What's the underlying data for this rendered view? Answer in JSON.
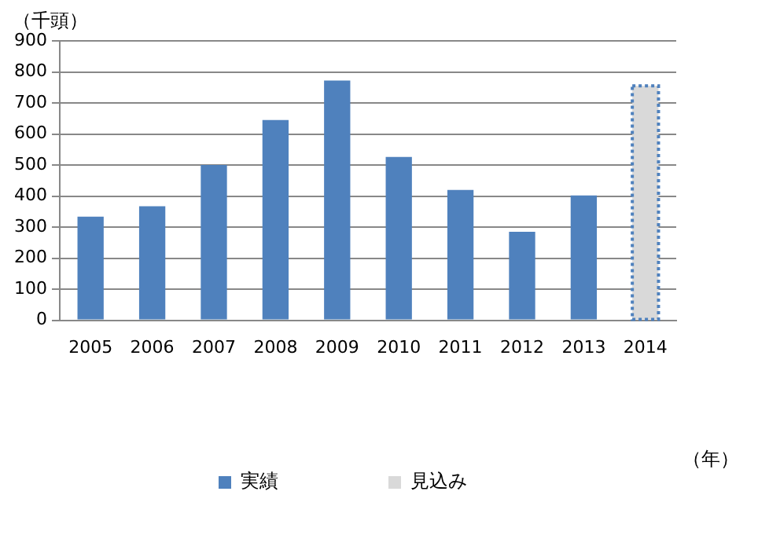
{
  "chart_data": {
    "type": "bar",
    "ylabel": "（千頭）",
    "xlabel": "（年）",
    "categories": [
      "2005",
      "2006",
      "2007",
      "2008",
      "2009",
      "2010",
      "2011",
      "2012",
      "2013",
      "2014"
    ],
    "series": [
      {
        "name": "実績",
        "color": "#4f81bd",
        "values": [
          334,
          367,
          500,
          645,
          772,
          526,
          420,
          285,
          402,
          null
        ]
      },
      {
        "name": "見込み",
        "color": "#d9d9d9",
        "line_style": "dotted",
        "values": [
          null,
          null,
          null,
          null,
          null,
          null,
          null,
          null,
          null,
          755
        ]
      }
    ],
    "ylim": [
      0,
      900
    ],
    "yticks": [
      0,
      100,
      200,
      300,
      400,
      500,
      600,
      700,
      800,
      900
    ],
    "grid": "y",
    "legend": "bottom"
  }
}
